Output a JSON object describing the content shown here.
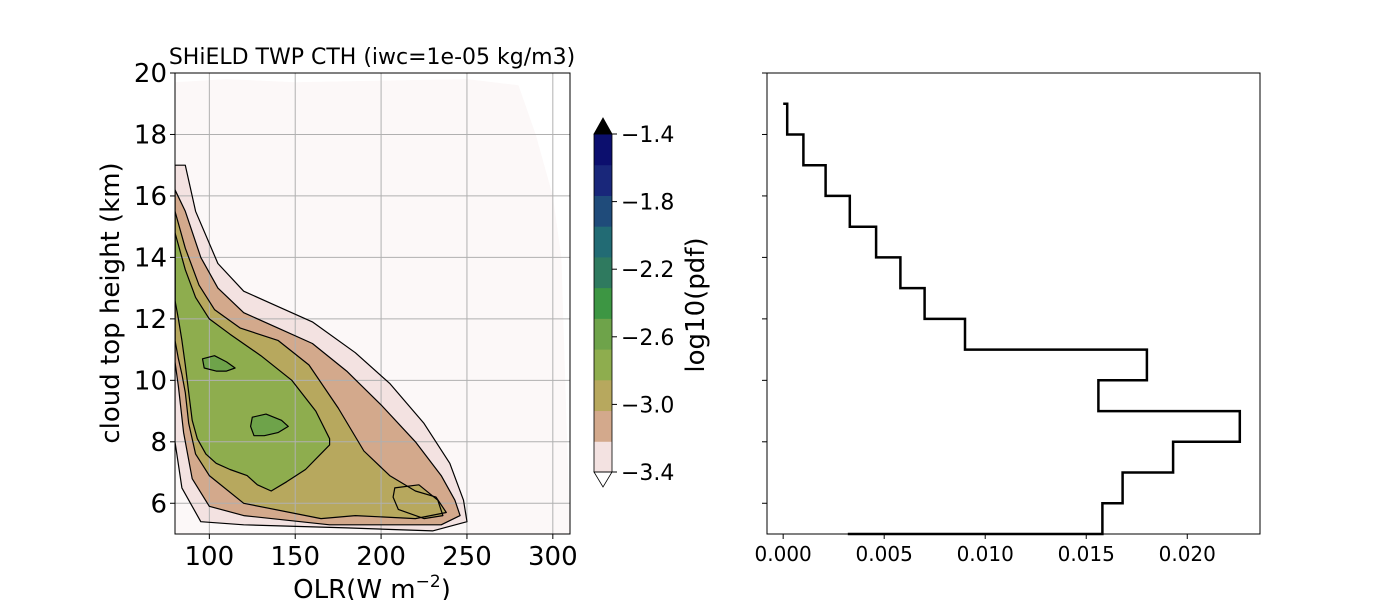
{
  "chart_data": [
    {
      "type": "contour",
      "title": "SHiELD TWP CTH (iwc=1e-05 kg/m3)",
      "xlabel": "OLR(W m$^{-2}$)",
      "xlabel_main": "OLR(W m",
      "xlabel_sup": "−2",
      "xlabel_end": ")",
      "ylabel": "cloud top height (km)",
      "xlim": [
        80,
        310
      ],
      "ylim": [
        5,
        20
      ],
      "xticks": [
        100,
        150,
        200,
        250,
        300
      ],
      "yticks": [
        6,
        8,
        10,
        12,
        14,
        16,
        18,
        20
      ],
      "grid": true,
      "levels": [
        -3.4,
        -3.2,
        -3.0,
        -2.8,
        -2.6,
        -2.4,
        -2.2,
        -2.0,
        -1.8,
        -1.6,
        -1.4
      ],
      "contours": [
        {
          "level": -3.6,
          "points": [
            [
              80,
              19.7
            ],
            [
              110,
              19.8
            ],
            [
              150,
              19.7
            ],
            [
              250,
              19.8
            ],
            [
              280,
              19.6
            ],
            [
              290,
              18
            ],
            [
              300,
              16
            ],
            [
              305,
              14
            ],
            [
              310,
              5
            ],
            [
              80,
              5
            ]
          ]
        },
        {
          "level": -3.4,
          "points": [
            [
              80,
              17
            ],
            [
              86,
              17
            ],
            [
              92,
              15.5
            ],
            [
              105,
              13.8
            ],
            [
              120,
              12.9
            ],
            [
              140,
              12.4
            ],
            [
              160,
              11.9
            ],
            [
              185,
              10.9
            ],
            [
              205,
              9.9
            ],
            [
              225,
              8.6
            ],
            [
              240,
              7.3
            ],
            [
              248,
              6.1
            ],
            [
              250,
              5.4
            ],
            [
              230,
              5.1
            ],
            [
              180,
              5.2
            ],
            [
              120,
              5.3
            ],
            [
              95,
              5.4
            ],
            [
              84,
              6.5
            ],
            [
              80,
              8
            ]
          ]
        },
        {
          "level": -3.2,
          "points": [
            [
              80,
              16.2
            ],
            [
              86,
              15.5
            ],
            [
              95,
              14
            ],
            [
              105,
              13
            ],
            [
              120,
              12.2
            ],
            [
              140,
              11.7
            ],
            [
              160,
              11.2
            ],
            [
              180,
              10.3
            ],
            [
              200,
              9.2
            ],
            [
              220,
              8
            ],
            [
              235,
              6.9
            ],
            [
              243,
              6.1
            ],
            [
              246,
              5.6
            ],
            [
              235,
              5.3
            ],
            [
              200,
              5.3
            ],
            [
              170,
              5.3
            ],
            [
              120,
              5.6
            ],
            [
              100,
              5.9
            ],
            [
              90,
              6.8
            ],
            [
              85,
              8.3
            ],
            [
              82,
              9.8
            ],
            [
              80,
              10.6
            ]
          ]
        },
        {
          "level": -3.0,
          "points": [
            [
              80,
              15.5
            ],
            [
              86,
              14.3
            ],
            [
              94,
              13.1
            ],
            [
              103,
              12.3
            ],
            [
              118,
              11.7
            ],
            [
              140,
              11.3
            ],
            [
              158,
              10.5
            ],
            [
              175,
              9.1
            ],
            [
              190,
              7.7
            ],
            [
              205,
              6.9
            ],
            [
              220,
              6.4
            ],
            [
              232,
              6.2
            ],
            [
              238,
              5.7
            ],
            [
              220,
              5.5
            ],
            [
              185,
              5.6
            ],
            [
              165,
              5.5
            ],
            [
              120,
              6
            ],
            [
              100,
              6.9
            ],
            [
              92,
              7.6
            ],
            [
              88,
              8.6
            ],
            [
              86,
              9.6
            ],
            [
              84,
              10.2
            ],
            [
              82,
              10.7
            ],
            [
              80,
              11.3
            ]
          ]
        },
        {
          "level": -3.0,
          "points": [
            [
              208,
              6.5
            ],
            [
              222,
              6.6
            ],
            [
              233,
              6.1
            ],
            [
              236,
              5.6
            ],
            [
              225,
              5.5
            ],
            [
              210,
              5.8
            ],
            [
              207,
              6.2
            ]
          ]
        },
        {
          "level": -2.8,
          "points": [
            [
              80,
              14.8
            ],
            [
              86,
              13.6
            ],
            [
              92,
              12.7
            ],
            [
              100,
              12
            ],
            [
              112,
              11.5
            ],
            [
              130,
              10.8
            ],
            [
              148,
              10
            ],
            [
              162,
              9
            ],
            [
              170,
              8.1
            ],
            [
              170,
              7.9
            ],
            [
              156,
              7.1
            ],
            [
              145,
              6.7
            ],
            [
              136,
              6.4
            ],
            [
              128,
              6.6
            ],
            [
              122,
              6.9
            ],
            [
              112,
              7.1
            ],
            [
              104,
              7.3
            ],
            [
              98,
              7.6
            ],
            [
              93,
              8.1
            ],
            [
              90,
              8.7
            ],
            [
              88,
              9.6
            ],
            [
              86,
              10.5
            ],
            [
              84,
              11.3
            ],
            [
              82,
              12
            ],
            [
              80,
              12.6
            ]
          ]
        },
        {
          "level": -2.6,
          "points": [
            [
              96,
              10.7
            ],
            [
              103,
              10.8
            ],
            [
              110,
              10.6
            ],
            [
              115,
              10.4
            ],
            [
              110,
              10.3
            ],
            [
              104,
              10.3
            ],
            [
              97,
              10.4
            ]
          ]
        },
        {
          "level": -2.6,
          "points": [
            [
              125,
              8.8
            ],
            [
              133,
              8.9
            ],
            [
              142,
              8.7
            ],
            [
              146,
              8.5
            ],
            [
              140,
              8.3
            ],
            [
              132,
              8.2
            ],
            [
              126,
              8.2
            ],
            [
              124,
              8.5
            ]
          ]
        }
      ],
      "colorbar": {
        "label": "log10(pdf)",
        "ticks": [
          -3.4,
          -3.0,
          -2.6,
          -2.2,
          -1.8,
          -1.4
        ],
        "tick_labels": [
          "−3.4",
          "−3.0",
          "−2.6",
          "−2.2",
          "−1.8",
          "−1.4"
        ],
        "colors": [
          "#f3e2e1",
          "#d3a98c",
          "#b7a85e",
          "#8ead4e",
          "#6ea34a",
          "#3d9643",
          "#2f7a5f",
          "#226b74",
          "#1f4b7a",
          "#19277a",
          "#0c0f6e"
        ]
      }
    },
    {
      "type": "line",
      "step": true,
      "xlim": [
        -0.0008,
        0.0236
      ],
      "ylim": [
        5,
        20
      ],
      "xticks": [
        0.0,
        0.005,
        0.01,
        0.015,
        0.02
      ],
      "xtick_labels": [
        "0.000",
        "0.005",
        "0.010",
        "0.015",
        "0.020"
      ],
      "yticks": [
        6,
        8,
        10,
        12,
        14,
        16,
        18,
        20
      ],
      "points": [
        [
          0.0032,
          5
        ],
        [
          0.0158,
          5
        ],
        [
          0.0158,
          6
        ],
        [
          0.0168,
          6
        ],
        [
          0.0168,
          7
        ],
        [
          0.0193,
          7
        ],
        [
          0.0193,
          8
        ],
        [
          0.0226,
          8
        ],
        [
          0.0226,
          9
        ],
        [
          0.0156,
          9
        ],
        [
          0.0156,
          10
        ],
        [
          0.018,
          10
        ],
        [
          0.018,
          11
        ],
        [
          0.009,
          11
        ],
        [
          0.009,
          12
        ],
        [
          0.007,
          12
        ],
        [
          0.007,
          13
        ],
        [
          0.0058,
          13
        ],
        [
          0.0058,
          14
        ],
        [
          0.0046,
          14
        ],
        [
          0.0046,
          15
        ],
        [
          0.0033,
          15
        ],
        [
          0.0033,
          16
        ],
        [
          0.0021,
          16
        ],
        [
          0.0021,
          17
        ],
        [
          0.001,
          17
        ],
        [
          0.001,
          18
        ],
        [
          0.0002,
          18
        ],
        [
          0.0002,
          19
        ],
        [
          0.0,
          19
        ]
      ]
    }
  ]
}
